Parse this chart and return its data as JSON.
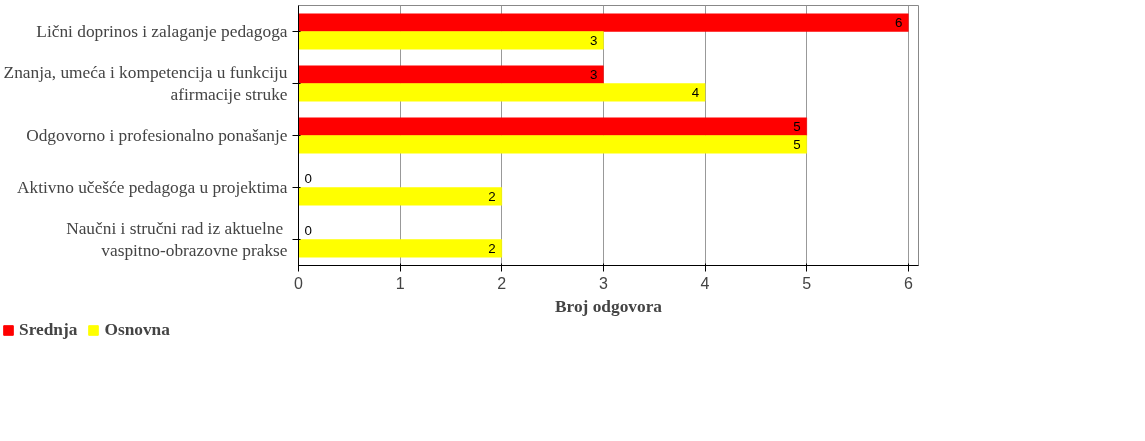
{
  "chart_data": {
    "type": "bar",
    "orientation": "horizontal",
    "xlabel": "Broj odgovora",
    "categories": [
      "Lični doprinos i zalaganje pedagoga",
      "Znanja, umeća i kompetencija u funkciju\nafirmacije struke",
      "Odgovorno i profesionalno ponašanje",
      "Aktivno učešće pedagoga u projektima",
      "Naučni i stručni rad iz  aktuelne\nvaspitno-obrazovne prakse"
    ],
    "series": [
      {
        "name": "Srednja",
        "color": "#ff0000",
        "values": [
          6,
          3,
          5,
          0,
          0
        ]
      },
      {
        "name": "Osnovna",
        "color": "#ffff00",
        "values": [
          3,
          4,
          5,
          2,
          2
        ]
      }
    ],
    "xlim": [
      0,
      6.1
    ],
    "xticks": [
      0,
      1,
      2,
      3,
      4,
      5,
      6
    ],
    "grid": "x",
    "legend": "bottom left",
    "data_labels": true
  }
}
